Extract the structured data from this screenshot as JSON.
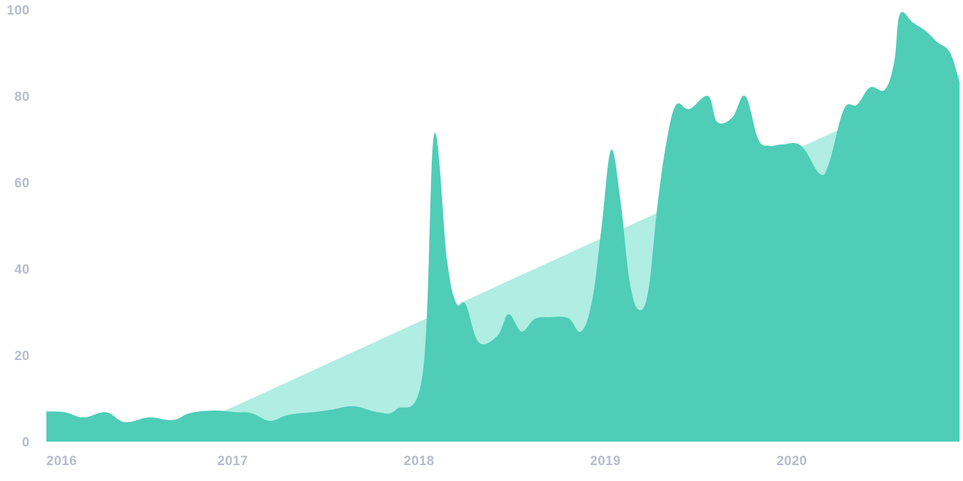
{
  "chart_data": {
    "type": "area",
    "title": "",
    "xlabel": "",
    "ylabel": "",
    "xlim": [
      2016,
      2020.9
    ],
    "ylim": [
      0,
      100
    ],
    "y_ticks": [
      "0",
      "20",
      "40",
      "60",
      "80",
      "100"
    ],
    "x_ticks": [
      "2016",
      "2017",
      "2018",
      "2019",
      "2020"
    ],
    "grid": false,
    "legend": "none",
    "series": [
      {
        "type": "area",
        "color": "#b0ede2",
        "x": [
          2016,
          2016.9,
          2020.9
        ],
        "y": [
          0,
          6,
          85
        ]
      },
      {
        "type": "area",
        "color": "#4fcdb7",
        "x": [
          2016,
          2016.1,
          2016.2,
          2016.32,
          2016.42,
          2016.55,
          2016.68,
          2016.77,
          2016.9,
          2017.02,
          2017.1,
          2017.2,
          2017.3,
          2017.45,
          2017.53,
          2017.65,
          2017.78,
          2017.88,
          2018.02,
          2018.08,
          2018.15,
          2018.2,
          2018.25,
          2018.32,
          2018.42,
          2018.48,
          2018.55,
          2018.62,
          2018.7,
          2018.8,
          2018.87,
          2018.93,
          2018.98,
          2019.03,
          2019.08,
          2019.13,
          2019.18,
          2019.23,
          2019.28,
          2019.33,
          2019.38,
          2019.45,
          2019.55,
          2019.6,
          2019.68,
          2019.75,
          2019.82,
          2019.88,
          2019.95,
          2020.05,
          2020.15,
          2020.2,
          2020.28,
          2020.35,
          2020.42,
          2020.5,
          2020.55,
          2020.58,
          2020.65,
          2020.72,
          2020.78,
          2020.85,
          2020.9
        ],
        "y": [
          7,
          6.8,
          5.6,
          6.8,
          4.5,
          5.6,
          5,
          6.6,
          7.2,
          6.8,
          6.6,
          4.8,
          6.2,
          6.9,
          7.4,
          8.2,
          6.8,
          7.5,
          16,
          71,
          42,
          32,
          31.8,
          23,
          24.5,
          29.5,
          25.5,
          28.4,
          28.8,
          28.6,
          25.5,
          33,
          50,
          67.5,
          56,
          37,
          30.5,
          35,
          55,
          70,
          78,
          77,
          80,
          74,
          75,
          80,
          70,
          68.5,
          68.8,
          68.5,
          62,
          64.5,
          77,
          78,
          82,
          81.5,
          88,
          99,
          97,
          95,
          92.5,
          90,
          83
        ]
      }
    ]
  }
}
